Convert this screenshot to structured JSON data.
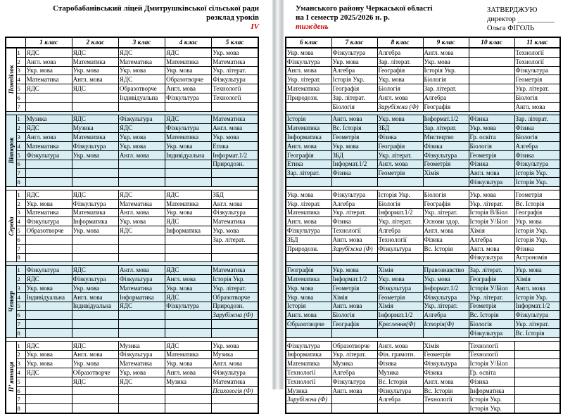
{
  "colors": {
    "day_highlight": "#d8eef2",
    "accent_red": "#d40000"
  },
  "left_page": {
    "title_line1": "Старобабанівський ліцей Дмитрушківської  сільської ради",
    "title_line2": "розклад уроків",
    "term_mark": "IV",
    "class_headers": [
      "1 клас",
      "2 клас",
      "3 клас",
      "4 клас",
      "5 клас"
    ],
    "days": [
      {
        "name": "Понеділок",
        "highlight": false,
        "rows": [
          [
            "ЯДС",
            "ЯДС",
            "ЯДС",
            "ЯДС",
            "Укр. мова"
          ],
          [
            "Англ. мова",
            "Математика",
            "Математика",
            "Математика",
            "Математика"
          ],
          [
            "Укр. мова",
            "Укр. мова",
            "Укр. мова",
            "Укр. мова",
            "Укр. літерат."
          ],
          [
            "Математика",
            "Англ. мова",
            "ЯДС",
            "Образотворче",
            "Фізкультура"
          ],
          [
            "ЯДС",
            "ЯДС",
            "Образотворче",
            "Англ. мова",
            "Технології"
          ],
          [
            "",
            "",
            "Індивідуальна",
            "Фізкультура",
            "Технології"
          ],
          [
            "",
            "",
            "",
            "",
            ""
          ]
        ]
      },
      {
        "name": "Вівторок",
        "highlight": true,
        "rows": [
          [
            "Музика",
            "ЯДС",
            "Фізкультура",
            "ЯДС",
            "Математика"
          ],
          [
            "ЯДС",
            "Музика",
            "ЯДС",
            "Фізкультура",
            "Англ. мова"
          ],
          [
            "Англ. мова",
            "Математика",
            "Укр. мова",
            "Математика",
            "Укр. мова"
          ],
          [
            "Математика",
            "Фізкультура",
            "Укр. мова",
            "Укр. мова",
            "Етика"
          ],
          [
            "Фізкультура",
            "Укр. мова",
            "Англ. мова",
            "Індивідуальна",
            "Інформат.1/2"
          ],
          [
            "",
            "",
            "",
            "",
            "Природозн."
          ],
          [
            "",
            "",
            "",
            "",
            ""
          ],
          [
            "",
            "",
            "",
            "",
            ""
          ]
        ]
      },
      {
        "name": "Середа",
        "highlight": false,
        "rows": [
          [
            "ЯДС",
            "ЯДС",
            "ЯДС",
            "ЯДС",
            "ЗБД"
          ],
          [
            "Укр. мова",
            "Фізкультура",
            "Математика",
            "Математика",
            "Англ. мова"
          ],
          [
            "Математика",
            "Математика",
            "Англ. мова",
            "Укр. мова",
            "Фізкультура"
          ],
          [
            "Фізкультура",
            "Інформатика",
            "Укр. мова",
            "ЯДС",
            "Математика"
          ],
          [
            "Образотворче",
            "Укр. мова",
            "ЯДС",
            "Інформатика",
            "Укр. мова"
          ],
          [
            "",
            "",
            "",
            "",
            "Зар. літерат."
          ],
          [
            "",
            "",
            "",
            "",
            ""
          ],
          [
            "",
            "",
            "",
            "",
            ""
          ]
        ]
      },
      {
        "name": "Четвер",
        "highlight": true,
        "rows": [
          [
            "Фізкультура",
            "ЯДС",
            "Англ. мова",
            "ЯДС",
            "Математика"
          ],
          [
            "ЯДС",
            "Фізкультура",
            "Фізкультура",
            "Англ. мова",
            "Історія Укр."
          ],
          [
            "Укр. мова",
            "Укр. мова",
            "Математика",
            "Укр. мова",
            "Укр. літерат."
          ],
          [
            "Індивідуальна",
            "Англ. мова",
            "Інформатика",
            "ЯДС",
            "Образотворче"
          ],
          [
            "",
            "Індивідуальна",
            "ЯДС",
            "Фізкультура",
            "Природозн."
          ],
          [
            "",
            "",
            "",
            "",
            {
              "text": "Зарубіжна (Ф)",
              "italic": true
            }
          ],
          [
            "",
            "",
            "",
            "",
            ""
          ],
          [
            "",
            "",
            "",
            "",
            ""
          ]
        ]
      },
      {
        "name": "П’ ятниця",
        "highlight": false,
        "rows": [
          [
            "ЯДС",
            "ЯДС",
            "Музика",
            "ЯДС",
            "Укр. мова"
          ],
          [
            "Укр. мова",
            "Англ. мова",
            "Фізкультура",
            "Математика",
            "Музика"
          ],
          [
            "Укр. мова",
            "Укр. мова",
            "Математика",
            "Укр. мова",
            "Англ. мова"
          ],
          [
            "ЯДС",
            "Образотворче",
            "Укр. мова",
            "Англ. мова",
            "Фізкультура"
          ],
          [
            "",
            "ЯДС",
            "ЯДС",
            "Музика",
            "Математика"
          ],
          [
            "",
            "",
            "",
            "",
            {
              "text": "Психологія (Ф)",
              "italic": true
            }
          ],
          [
            "",
            "",
            "",
            "",
            ""
          ],
          [
            "",
            "",
            "",
            "",
            ""
          ]
        ]
      }
    ]
  },
  "right_page": {
    "header_line1": "Уманського району Черкаської області",
    "header_line2": "на І семестр 2025/2026 н. р.",
    "week_mark": "тиждень",
    "approval_line1": "ЗАТВЕРДЖУЮ",
    "approval_line2": "директор __________",
    "approval_line3": "Ольга ФІГОЛЬ",
    "class_headers": [
      "6 клас",
      "7 клас",
      "8 клас",
      "9 клас",
      "10 клас",
      "11 клас"
    ],
    "days": [
      {
        "name": "Понеділок",
        "highlight": false,
        "rows": [
          [
            "Укр. мова",
            "Фізкультура",
            "Алгебра",
            "Англ. мова",
            "",
            "Технології"
          ],
          [
            "Фізкультура",
            "Укр. мова",
            "Зар. літерат.",
            "Укр. мова",
            "",
            "Технології"
          ],
          [
            "Англ. мова",
            "Алгебра",
            "Географія",
            "Історія Укр.",
            "",
            "Фізкультура"
          ],
          [
            "Укр. літерат.",
            "Історія Укр.",
            "Укр. мова",
            "Біологія",
            "",
            "Геометрія"
          ],
          [
            "Математика",
            "Географія",
            "Біологія",
            "Зар. літерат.",
            "",
            "Укр. літерат."
          ],
          [
            "Природозн.",
            "Зар. літерат.",
            "Англ. мова",
            "Алгебра",
            "",
            "Біологія"
          ],
          [
            "",
            "Біологія",
            {
              "text": "Зарубіжна (Ф)",
              "italic": true
            },
            "Географія",
            "",
            "Англ. мова"
          ]
        ]
      },
      {
        "name": "Вівторок",
        "highlight": true,
        "rows": [
          [
            "Історія",
            "Англ. мова",
            "Укр. мова",
            "Інформат.1/2",
            "Фізика",
            "Зар. літерат."
          ],
          [
            "Математика",
            "Вс. Історія",
            "ЗБД",
            "Зар. літерат.",
            "Укр. мова",
            "Фізика"
          ],
          [
            "Інформатика",
            "Геометрія",
            "Фізика",
            "Мистецтво",
            "Гр. освіта",
            "Біологія"
          ],
          [
            "Англ. мова",
            "Укр. мова",
            "Географія",
            "Фізика",
            "Біологія",
            "Алгебра"
          ],
          [
            "Географія",
            "ЗБД",
            "Укр. літерат.",
            "Фізкультура",
            "Геометрія",
            "Фізика"
          ],
          [
            "Етика",
            "Інформат.1/2",
            "Англ. мова",
            "Геометрія",
            "Фізика",
            "Фізкультура"
          ],
          [
            "Зар. літерат.",
            "Фізика",
            "Геометрія",
            "Хімія",
            "Англ. мова",
            "Історія Укр."
          ],
          [
            "",
            "",
            "",
            "",
            "Фізкультура",
            "Історія Укр."
          ]
        ]
      },
      {
        "name": "Середа",
        "highlight": false,
        "rows": [
          [
            "Укр. мова",
            "Фізкультура",
            "Історія Укр.",
            "Біологія",
            "Укр. мова",
            "Геометрія"
          ],
          [
            "Укр. літерат.",
            "Алгебра",
            "Біологія",
            "Географія",
            "Укр. літерат.",
            "Вс. Історія"
          ],
          [
            "Математика",
            "Укр. літерат.",
            "Інформат.1/2",
            "Укр. літерат.",
            "Історія В/Біол",
            "Географія"
          ],
          [
            "Англ. мова",
            "Фізика",
            "Укр. літерат.",
            "Основи здор.",
            "Історія У/Біол",
            "Укр. мова"
          ],
          [
            "Фізкультура",
            "Технології",
            "Алгебра",
            "Англ. мова",
            "Хімія",
            "Історія Укр."
          ],
          [
            "ЗБД",
            "Англ. мова",
            "Технології",
            "Фізика",
            "Алгебра",
            "Історія Укр."
          ],
          [
            "Природозн.",
            {
              "text": "Зарубіжна (Ф)",
              "italic": true
            },
            "Фізкультура",
            "Вс. Історія",
            "Англ. мова",
            "Фізика"
          ],
          [
            "",
            "",
            "",
            "",
            "Фізкультура",
            "Астрономія"
          ]
        ]
      },
      {
        "name": "Четвер",
        "highlight": true,
        "rows": [
          [
            "Географія",
            "Укр. мова",
            "Хімія",
            "Правознавство",
            "Зар. літерат.",
            "Укр. мова"
          ],
          [
            "Математика",
            "Інформат.1/2",
            "Укр. мова",
            "Укр. мова",
            "Географія",
            "Хімія"
          ],
          [
            "Укр. мова",
            "Геометрія",
            "Фізкультура",
            "Інформат.1/2",
            "Історія У/Біол",
            "Англ. мова"
          ],
          [
            "Укр. мова",
            "Хімія",
            "Геометрія",
            "Фізкультура",
            "Укр. літерат.",
            "Історія Укр."
          ],
          [
            "Історія",
            "Англ. мова",
            "Хімія",
            "Укр. літерат.",
            "Геометрія",
            "Інформат.1/2"
          ],
          [
            "Англ. мова",
            "Біологія",
            "Інформат.1/2",
            "Алгебра",
            "Вс. Історія",
            "Фізкультура"
          ],
          [
            "Образотворче",
            "Географія",
            {
              "text": "Креслення(Ф)",
              "italic": true
            },
            {
              "text": "Історія(Ф)",
              "italic": true
            },
            "Біологія",
            "Укр. літерат."
          ],
          [
            "",
            "",
            "",
            "",
            "Фізкультура",
            "Вс. Історія"
          ]
        ]
      },
      {
        "name": "П’ ятниця",
        "highlight": false,
        "rows": [
          [
            "Фізкультура",
            "Образотворче",
            "Англ. мова",
            "Хімія",
            "Технології",
            ""
          ],
          [
            "Інформатика",
            "Укр. літерат.",
            "Фін. грамотн.",
            "Геометрія",
            "Технології",
            ""
          ],
          [
            "Математика",
            "Музика",
            "Фізика",
            "Фізкультура",
            "Історія У/Біол",
            ""
          ],
          [
            "Технології",
            "Алгебра",
            "Музика",
            "Фізика",
            "Гр. освіта",
            ""
          ],
          [
            "Технології",
            "Фізкультура",
            "Вс. Історія",
            "Англ. мова",
            "Фізика",
            ""
          ],
          [
            "Музика",
            "Англ. мова",
            "Фізкультура",
            "Вс. Історія",
            "Інформатика",
            ""
          ],
          [
            {
              "text": "Зарубіжна (Ф)",
              "italic": true
            },
            "",
            "Алгебра",
            "Технології",
            "Історія Укр.",
            ""
          ],
          [
            "",
            "",
            "",
            "",
            "Історія Укр.",
            ""
          ]
        ]
      }
    ]
  }
}
